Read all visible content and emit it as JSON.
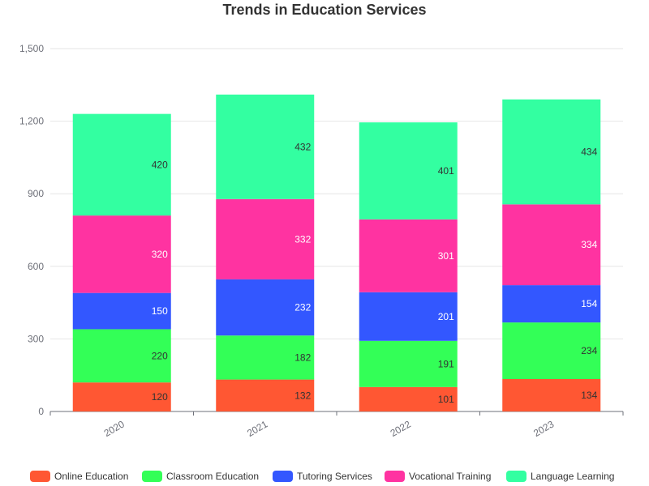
{
  "chart_data": {
    "type": "bar",
    "stacked": true,
    "title": "Trends in Education Services",
    "categories": [
      "2020",
      "2021",
      "2022",
      "2023"
    ],
    "series": [
      {
        "name": "Online Education",
        "color": "#ff5733",
        "values": [
          120,
          132,
          101,
          134
        ]
      },
      {
        "name": "Classroom Education",
        "color": "#33ff57",
        "values": [
          220,
          182,
          191,
          234
        ]
      },
      {
        "name": "Tutoring Services",
        "color": "#3357ff",
        "values": [
          150,
          232,
          201,
          154
        ]
      },
      {
        "name": "Vocational Training",
        "color": "#ff33a1",
        "values": [
          320,
          332,
          301,
          334
        ]
      },
      {
        "name": "Language Learning",
        "color": "#33ffa1",
        "values": [
          420,
          432,
          401,
          434
        ]
      }
    ],
    "y_ticks": [
      "0",
      "300",
      "600",
      "900",
      "1,200",
      "1,500"
    ],
    "ylim": [
      0,
      1500
    ],
    "grid": true,
    "legend_position": "bottom"
  }
}
